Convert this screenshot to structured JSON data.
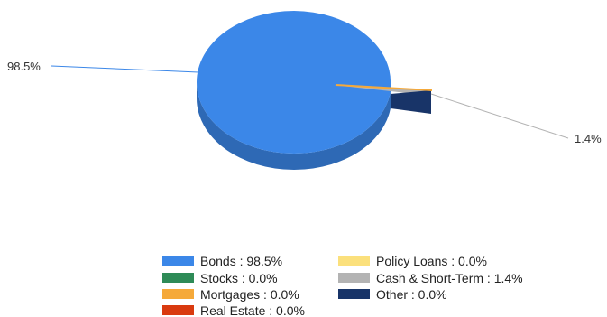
{
  "chart_data": {
    "type": "pie",
    "style": "3d",
    "categories": [
      "Bonds",
      "Stocks",
      "Mortgages",
      "Real Estate",
      "Policy Loans",
      "Cash & Short-Term",
      "Other"
    ],
    "values": [
      98.5,
      0.0,
      0.0,
      0.0,
      0.0,
      1.4,
      0.0
    ],
    "legend_labels": [
      "Bonds : 98.5%",
      "Stocks : 0.0%",
      "Mortgages : 0.0%",
      "Real Estate : 0.0%",
      "Policy Loans : 0.0%",
      "Cash & Short-Term : 1.4%",
      "Other : 0.0%"
    ],
    "slice_labels": [
      {
        "category": "Bonds",
        "text": "98.5%"
      },
      {
        "category": "Cash & Short-Term",
        "text": "1.4%"
      }
    ],
    "colors": {
      "Bonds": "#3b87e8",
      "Stocks": "#2e8b57",
      "Mortgages": "#f5a93a",
      "Real Estate": "#d93a0f",
      "Policy Loans": "#fbe07c",
      "Cash & Short-Term": "#b3b3b3",
      "Other": "#183468"
    },
    "legend_position": "bottom"
  }
}
